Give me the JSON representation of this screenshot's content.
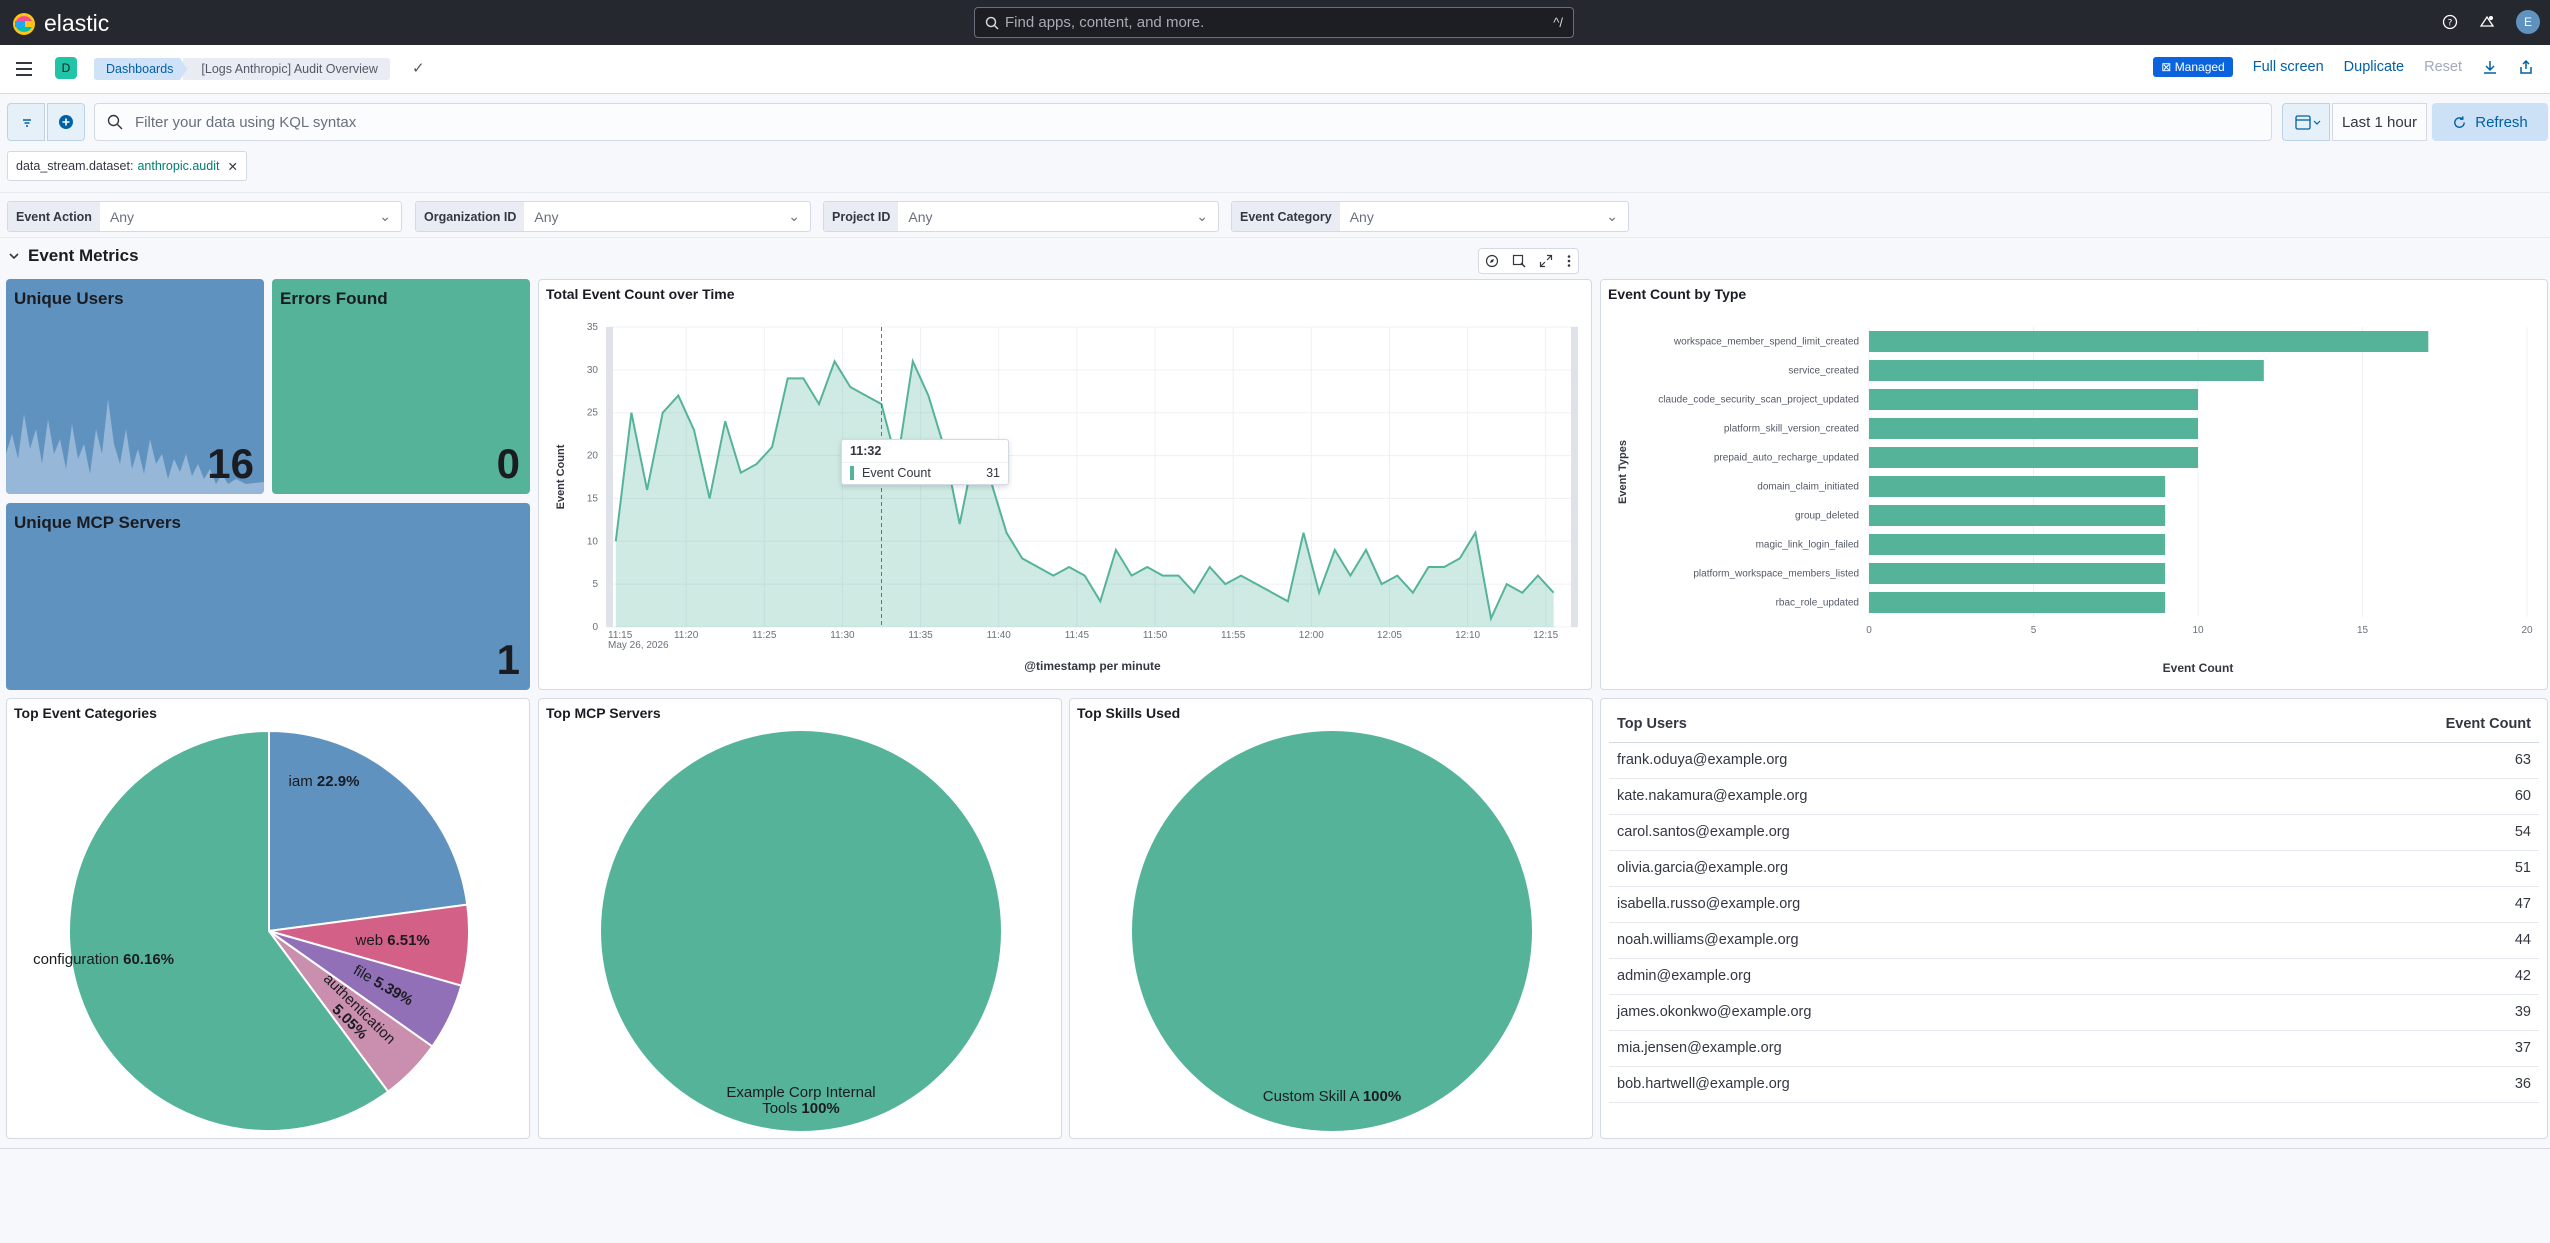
{
  "header": {
    "brand": "elastic",
    "search_placeholder": "Find apps, content, and more.",
    "search_shortcut": "^/",
    "avatar_initial": "E"
  },
  "nav": {
    "space_initial": "D",
    "breadcrumbs": [
      "Dashboards",
      "[Logs Anthropic] Audit Overview"
    ],
    "managed_badge": "Managed",
    "full_screen": "Full screen",
    "duplicate": "Duplicate",
    "reset": "Reset"
  },
  "query": {
    "placeholder": "Filter your data using KQL syntax",
    "time_range": "Last 1 hour",
    "refresh": "Refresh",
    "filter_key": "data_stream.dataset:",
    "filter_value": "anthropic.audit"
  },
  "controls": [
    {
      "label": "Event Action",
      "value": "Any"
    },
    {
      "label": "Organization ID",
      "value": "Any"
    },
    {
      "label": "Project ID",
      "value": "Any"
    },
    {
      "label": "Event Category",
      "value": "Any"
    }
  ],
  "section_title": "Event Metrics",
  "metrics": {
    "unique_users": {
      "title": "Unique Users",
      "value": "16"
    },
    "errors_found": {
      "title": "Errors Found",
      "value": "0"
    },
    "unique_mcp": {
      "title": "Unique MCP Servers",
      "value": "1"
    }
  },
  "colors": {
    "green": "#54b399",
    "blue": "#6092c0",
    "pink": "#d36086",
    "purple": "#9170b8",
    "rose": "#ca8eae"
  },
  "chart_data": [
    {
      "type": "area",
      "title": "Total Event Count over Time",
      "xlabel": "@timestamp per minute",
      "ylabel": "Event Count",
      "date_label": "May 26, 2026",
      "x_ticks": [
        "11:15",
        "11:20",
        "11:25",
        "11:30",
        "11:35",
        "11:40",
        "11:45",
        "11:50",
        "11:55",
        "12:00",
        "12:05",
        "12:10",
        "12:15"
      ],
      "y_ticks": [
        "0",
        "5",
        "10",
        "15",
        "20",
        "25",
        "30",
        "35"
      ],
      "ylim": [
        0,
        35
      ],
      "x_minutes_range": [
        0,
        62
      ],
      "values": [
        10,
        25,
        16,
        25,
        27,
        23,
        15,
        24,
        18,
        19,
        21,
        29,
        29,
        26,
        31,
        28,
        27,
        26,
        19,
        31,
        27,
        21,
        12,
        21,
        17,
        11,
        8,
        7,
        6,
        7,
        6,
        3,
        9,
        6,
        7,
        6,
        6,
        4,
        7,
        5,
        6,
        5,
        4,
        3,
        11,
        4,
        9,
        6,
        9,
        5,
        6,
        4,
        7,
        7,
        8,
        11,
        1,
        5,
        4,
        6,
        4
      ],
      "tooltip": {
        "time": "11:32",
        "series": "Event Count",
        "value": "31"
      }
    },
    {
      "type": "bar",
      "orientation": "horizontal",
      "title": "Event Count by Type",
      "xlabel": "Event Count",
      "ylabel": "Event Types",
      "categories": [
        "workspace_member_spend_limit_created",
        "service_created",
        "claude_code_security_scan_project_updated",
        "platform_skill_version_created",
        "prepaid_auto_recharge_updated",
        "domain_claim_initiated",
        "group_deleted",
        "magic_link_login_failed",
        "platform_workspace_members_listed",
        "rbac_role_updated"
      ],
      "values": [
        17,
        12,
        10,
        10,
        10,
        9,
        9,
        9,
        9,
        9
      ],
      "xlim": [
        0,
        20
      ],
      "x_ticks": [
        "0",
        "5",
        "10",
        "15",
        "20"
      ]
    },
    {
      "type": "pie",
      "title": "Top Event Categories",
      "slices": [
        {
          "label": "iam",
          "pct": "22.9%",
          "value": 22.9,
          "color": "#6092c0"
        },
        {
          "label": "web",
          "pct": "6.51%",
          "value": 6.51,
          "color": "#d36086"
        },
        {
          "label": "file",
          "pct": "5.39%",
          "value": 5.39,
          "color": "#9170b8"
        },
        {
          "label": "authentication",
          "pct": "5.05%",
          "value": 5.05,
          "color": "#ca8eae"
        },
        {
          "label": "configuration",
          "pct": "60.16%",
          "value": 60.16,
          "color": "#54b399"
        }
      ]
    },
    {
      "type": "pie",
      "title": "Top MCP Servers",
      "slices": [
        {
          "label": "Example Corp Internal Tools",
          "pct": "100%",
          "value": 100,
          "color": "#54b399"
        }
      ]
    },
    {
      "type": "pie",
      "title": "Top Skills Used",
      "slices": [
        {
          "label": "Custom Skill A",
          "pct": "100%",
          "value": 100,
          "color": "#54b399"
        }
      ]
    }
  ],
  "top_users": {
    "headers": [
      "Top Users",
      "Event Count"
    ],
    "rows": [
      [
        "frank.oduya@example.org",
        "63"
      ],
      [
        "kate.nakamura@example.org",
        "60"
      ],
      [
        "carol.santos@example.org",
        "54"
      ],
      [
        "olivia.garcia@example.org",
        "51"
      ],
      [
        "isabella.russo@example.org",
        "47"
      ],
      [
        "noah.williams@example.org",
        "44"
      ],
      [
        "admin@example.org",
        "42"
      ],
      [
        "james.okonkwo@example.org",
        "39"
      ],
      [
        "mia.jensen@example.org",
        "37"
      ],
      [
        "bob.hartwell@example.org",
        "36"
      ]
    ]
  }
}
